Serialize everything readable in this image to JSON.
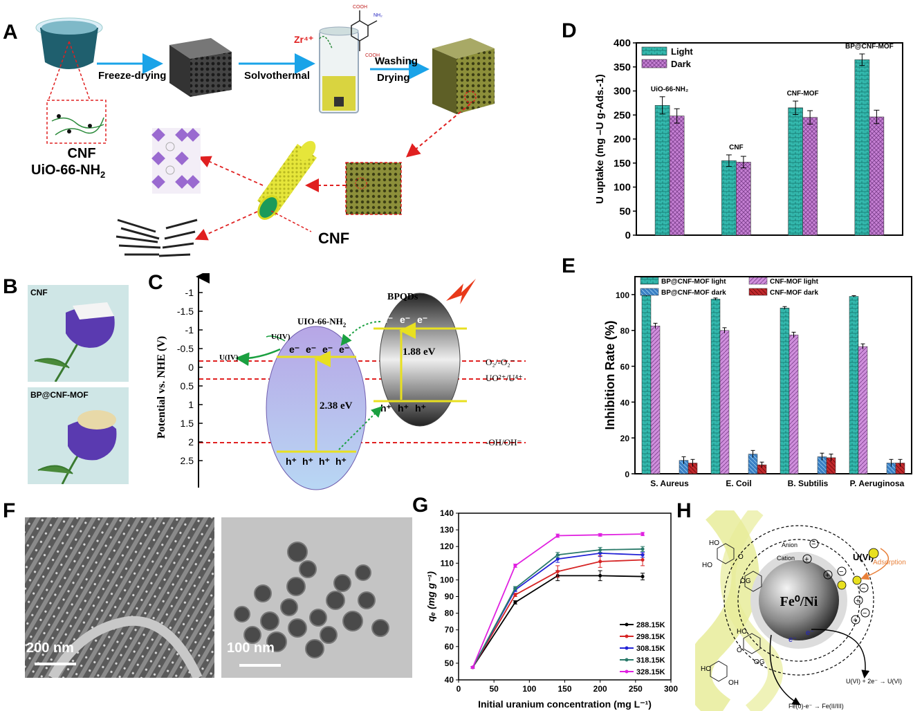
{
  "panels": {
    "A": {
      "label": "A",
      "steps": [
        "Freeze-drying",
        "Solvothermal",
        "Washing",
        "Drying"
      ],
      "zr": "Zr⁴⁺",
      "cooh_top": "COOH",
      "nh2": "NH₂",
      "cooh_bottom": "COOH",
      "cnf_label1": "CNF",
      "cnf_label2": "UiO-66-NH",
      "cnf_label2_sub": "2",
      "cnf_right": "CNF"
    },
    "B": {
      "label": "B",
      "photo1": "CNF",
      "photo2": "BP@CNF-MOF"
    },
    "C": {
      "label": "C",
      "y_axis_label": "Potential vs. NHE (V)",
      "ticks": [
        "-1",
        "-1.5",
        "-1",
        "-0.5",
        "0",
        "0.5",
        "1",
        "1.5",
        "2",
        "2.5"
      ],
      "uio_label": "UIO-66-NH",
      "uio_sub": "2",
      "bpqds_label": "BPQDs",
      "uio_gap": "2.38 eV",
      "bp_gap": "1.88 eV",
      "uiv": "U(IV)",
      "uiv2": "U(IV)",
      "o2": "O₂/-O₂⁻",
      "uo2": "UO²⁺/U⁴⁺",
      "oh": "-OH/OH⁻",
      "electron": "e⁻",
      "hole": "h⁺"
    },
    "D": {
      "label": "D",
      "annotations": [
        "UiO-66-NH₂",
        "CNF",
        "CNF-MOF",
        "BP@CNF-MOF"
      ]
    },
    "E": {
      "label": "E"
    },
    "F": {
      "label": "F",
      "scale1": "200 nm",
      "scale2": "100 nm"
    },
    "G": {
      "label": "G"
    },
    "H": {
      "label": "H",
      "core": "Fe⁰/Ni",
      "uvi": "U(VI)",
      "adsorption": "Adsorption",
      "anion": "Anion",
      "cation": "Cation",
      "reaction1": "U(VI) + 2e⁻ → U(VI)",
      "reaction2": "Fe(0)-e⁻ → Fe(II/III)",
      "electron": "e⁻",
      "ho": "HO",
      "oh": "OH",
      "og": "OG",
      "o": "O"
    }
  },
  "chart_data": [
    {
      "id": "D",
      "type": "bar",
      "title": "",
      "xlabel": "",
      "ylabel": "U uptake (mg –U g-Ads.-1)",
      "ylim": [
        0,
        400
      ],
      "yticks": [
        0,
        50,
        100,
        150,
        200,
        250,
        300,
        350,
        400
      ],
      "categories": [
        "UiO-66-NH₂",
        "CNF",
        "CNF-MOF",
        "BP@CNF-MOF"
      ],
      "series": [
        {
          "name": "Light",
          "values": [
            270,
            155,
            265,
            365
          ],
          "errors": [
            18,
            12,
            14,
            12
          ],
          "color": "#2eb3a8"
        },
        {
          "name": "Dark",
          "values": [
            248,
            152,
            245,
            246
          ],
          "errors": [
            15,
            12,
            14,
            14
          ],
          "color": "#b56fc4"
        }
      ],
      "legend": "top-left",
      "grid": false
    },
    {
      "id": "E",
      "type": "bar",
      "title": "",
      "xlabel": "",
      "ylabel": "Inhibition Rate (%)",
      "ylim": [
        0,
        110
      ],
      "yticks": [
        0,
        20,
        40,
        60,
        80,
        100
      ],
      "categories": [
        "S. Aureus",
        "E. Coil",
        "B. Subtilis",
        "P. Aeruginosa"
      ],
      "series": [
        {
          "name": "BP@CNF-MOF light",
          "values": [
            99.5,
            97.5,
            92.5,
            99.0
          ],
          "errors": [
            0.5,
            0.6,
            0.8,
            0.4
          ],
          "color": "#2eb3a8"
        },
        {
          "name": "CNF-MOF light",
          "values": [
            82.5,
            80.0,
            77.5,
            71.0
          ],
          "errors": [
            1.5,
            1.5,
            1.5,
            1.5
          ],
          "color": "#c784d4"
        },
        {
          "name": "BP@CNF-MOF dark",
          "values": [
            7.5,
            11.0,
            9.5,
            6.0
          ],
          "errors": [
            2.0,
            2.0,
            2.0,
            2.0
          ],
          "color": "#3a7fc4"
        },
        {
          "name": "CNF-MOF dark",
          "values": [
            6.0,
            5.0,
            9.0,
            6.0
          ],
          "errors": [
            2.0,
            1.5,
            2.0,
            2.0
          ],
          "color": "#c0282c"
        }
      ],
      "legend": "top",
      "grid": false
    },
    {
      "id": "G",
      "type": "line",
      "title": "",
      "xlabel": "Initial uranium concentration (mg L⁻¹)",
      "ylabel": "qₑ (mg g⁻¹)",
      "xlim": [
        0,
        300
      ],
      "ylim": [
        40,
        140
      ],
      "xticks": [
        0,
        50,
        100,
        150,
        200,
        250,
        300
      ],
      "yticks": [
        40,
        50,
        60,
        70,
        80,
        90,
        100,
        110,
        120,
        130,
        140
      ],
      "x": [
        20,
        80,
        140,
        200,
        260
      ],
      "series": [
        {
          "name": "288.15K",
          "values": [
            47.5,
            86.5,
            102.5,
            102.5,
            102.0
          ],
          "errors": [
            0.5,
            1.0,
            3.0,
            3.0,
            2.0
          ],
          "color": "#000000"
        },
        {
          "name": "298.15K",
          "values": [
            47.5,
            91.0,
            105.0,
            111.0,
            112.0
          ],
          "errors": [
            0.5,
            1.0,
            3.5,
            3.5,
            3.5
          ],
          "color": "#d62424"
        },
        {
          "name": "308.15K",
          "values": [
            47.5,
            94.0,
            112.5,
            116.0,
            115.0
          ],
          "errors": [
            0.5,
            1.0,
            2.0,
            2.0,
            1.5
          ],
          "color": "#2222d6"
        },
        {
          "name": "318.15K",
          "values": [
            47.5,
            95.0,
            115.0,
            118.0,
            118.5
          ],
          "errors": [
            0.5,
            1.0,
            1.5,
            1.5,
            1.5
          ],
          "color": "#2a7a6a"
        },
        {
          "name": "328.15K",
          "values": [
            47.5,
            108.5,
            126.5,
            127.0,
            127.5
          ],
          "errors": [
            0.5,
            1.0,
            1.0,
            0.8,
            1.0
          ],
          "color": "#e020e0"
        }
      ],
      "legend": "bottom-right",
      "grid": false
    }
  ]
}
